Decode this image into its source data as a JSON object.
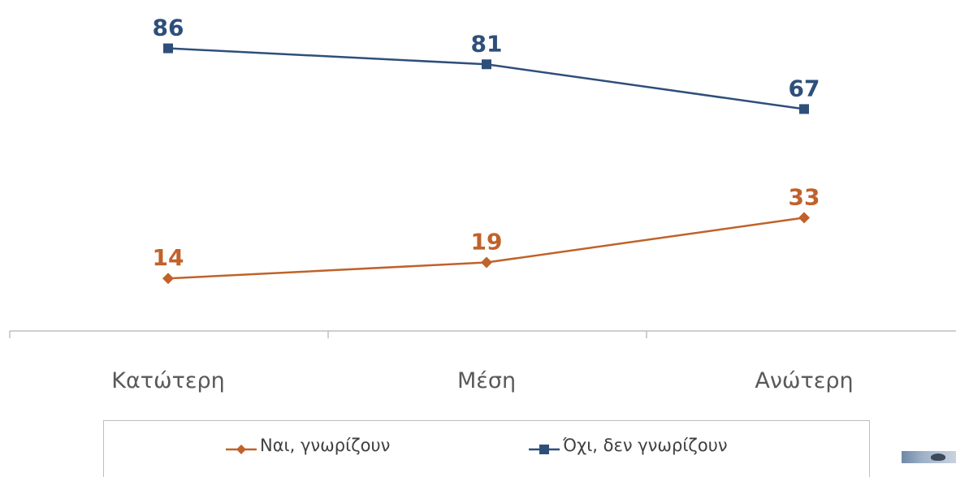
{
  "chart_data": {
    "type": "line",
    "categories": [
      "Κατώτερη",
      "Μέση",
      "Ανώτερη"
    ],
    "series": [
      {
        "name": "Ναι, γνωρίζουν",
        "values": [
          14,
          19,
          33
        ],
        "color": "#c0622a",
        "marker": "diamond"
      },
      {
        "name": "Όχι, δεν γνωρίζουν",
        "values": [
          86,
          81,
          67
        ],
        "color": "#2e4f7a",
        "marker": "square"
      }
    ],
    "ylim": [
      0,
      100
    ],
    "grid": false,
    "legend_position": "bottom",
    "data_labels": true
  },
  "legend": {
    "items": [
      {
        "label": "Ναι, γνωρίζουν",
        "icon": "diamond-line-icon"
      },
      {
        "label": "Όχι, δεν γνωρίζουν",
        "icon": "square-line-icon"
      }
    ]
  },
  "colors": {
    "axis": "#bfbfbf",
    "category_text": "#595959",
    "legend_text": "#404040"
  }
}
